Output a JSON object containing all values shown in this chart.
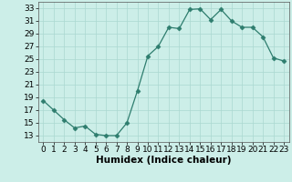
{
  "x": [
    0,
    1,
    2,
    3,
    4,
    5,
    6,
    7,
    8,
    9,
    10,
    11,
    12,
    13,
    14,
    15,
    16,
    17,
    18,
    19,
    20,
    21,
    22,
    23
  ],
  "y": [
    18.5,
    17.0,
    15.5,
    14.2,
    14.5,
    13.2,
    13.0,
    13.0,
    15.0,
    20.0,
    25.5,
    27.0,
    30.0,
    29.8,
    32.8,
    32.9,
    31.2,
    32.8,
    31.0,
    30.0,
    30.0,
    28.5,
    25.2,
    24.7
  ],
  "xlabel": "Humidex (Indice chaleur)",
  "xlim": [
    -0.5,
    23.5
  ],
  "ylim": [
    12,
    34
  ],
  "yticks": [
    13,
    15,
    17,
    19,
    21,
    23,
    25,
    27,
    29,
    31,
    33
  ],
  "xticks": [
    0,
    1,
    2,
    3,
    4,
    5,
    6,
    7,
    8,
    9,
    10,
    11,
    12,
    13,
    14,
    15,
    16,
    17,
    18,
    19,
    20,
    21,
    22,
    23
  ],
  "line_color": "#2e7d6e",
  "marker": "D",
  "marker_size": 2.5,
  "bg_color": "#cceee8",
  "grid_color": "#aad8d0",
  "xlabel_fontsize": 7.5,
  "tick_fontsize": 6.5
}
